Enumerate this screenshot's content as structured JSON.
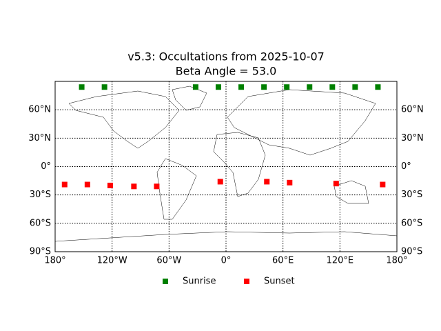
{
  "chart_data": {
    "type": "scatter",
    "title": "v5.3: Occultations from 2025-10-07",
    "subtitle": "Beta Angle = 53.0",
    "xlim": [
      -180,
      180
    ],
    "ylim": [
      -90,
      90
    ],
    "xticks": [
      {
        "value": -180,
        "label": "180°"
      },
      {
        "value": -120,
        "label": "120°W"
      },
      {
        "value": -60,
        "label": "60°W"
      },
      {
        "value": 0,
        "label": "0°"
      },
      {
        "value": 60,
        "label": "60°E"
      },
      {
        "value": 120,
        "label": "120°E"
      },
      {
        "value": 180,
        "label": "180°"
      }
    ],
    "yticks": [
      {
        "value": -90,
        "label": "90°S"
      },
      {
        "value": -60,
        "label": "60°S"
      },
      {
        "value": -30,
        "label": "30°S"
      },
      {
        "value": 0,
        "label": "0°"
      },
      {
        "value": 30,
        "label": "30°N"
      },
      {
        "value": 60,
        "label": "60°N"
      }
    ],
    "grid": true,
    "legend": "bottom",
    "series": [
      {
        "name": "Sunrise",
        "color": "#008000",
        "x": [
          -152,
          -128,
          -32,
          -8,
          16,
          40,
          64,
          88,
          112,
          136,
          160
        ],
        "values": [
          84,
          84,
          84,
          84,
          84,
          84,
          84,
          84,
          84,
          84,
          84
        ]
      },
      {
        "name": "Sunset",
        "color": "#ff0000",
        "x": [
          -170,
          -146,
          -122,
          -97,
          -73,
          -6,
          43,
          67,
          116,
          165
        ],
        "values": [
          -19,
          -19,
          -20,
          -21,
          -21,
          -16,
          -16,
          -17,
          -18,
          -19
        ]
      }
    ]
  }
}
